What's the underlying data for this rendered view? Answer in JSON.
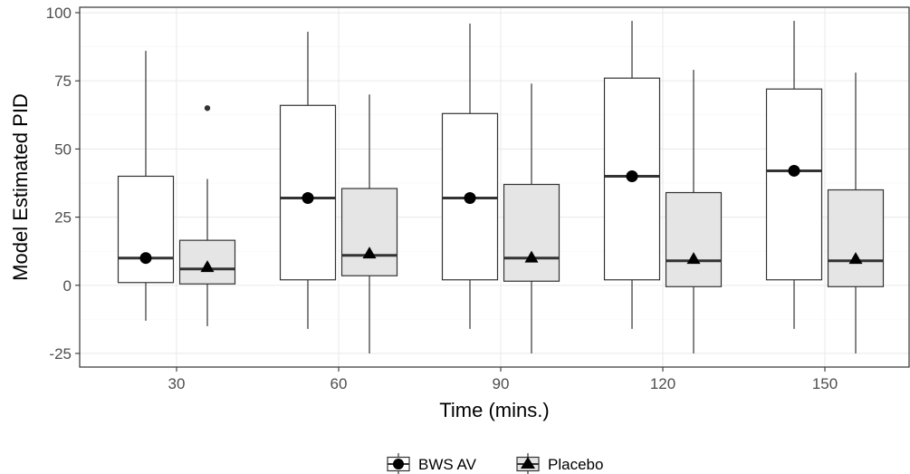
{
  "chart_data": {
    "type": "boxplot",
    "xlabel": "Time (mins.)",
    "ylabel": "Model Estimated PID",
    "categories": [
      "30",
      "60",
      "90",
      "120",
      "150"
    ],
    "ylim": [
      -30,
      102
    ],
    "yticks": [
      -25,
      0,
      25,
      50,
      75,
      100
    ],
    "ytick_labels": [
      "-25",
      "0",
      "25",
      "50",
      "75",
      "100"
    ],
    "grid": true,
    "legend_position": "bottom",
    "series": [
      {
        "name": "BWS AV",
        "marker": "circle",
        "fill": "#ffffff",
        "boxes": [
          {
            "category": "30",
            "whisker_low": -13,
            "q1": 1,
            "median": 10,
            "q3": 40,
            "whisker_high": 86,
            "mean": 10,
            "outliers": []
          },
          {
            "category": "60",
            "whisker_low": -16,
            "q1": 2,
            "median": 32,
            "q3": 66,
            "whisker_high": 93,
            "mean": 32,
            "outliers": []
          },
          {
            "category": "90",
            "whisker_low": -16,
            "q1": 2,
            "median": 32,
            "q3": 63,
            "whisker_high": 96,
            "mean": 32,
            "outliers": []
          },
          {
            "category": "120",
            "whisker_low": -16,
            "q1": 2,
            "median": 40,
            "q3": 76,
            "whisker_high": 97,
            "mean": 40,
            "outliers": []
          },
          {
            "category": "150",
            "whisker_low": -16,
            "q1": 2,
            "median": 42,
            "q3": 72,
            "whisker_high": 97,
            "mean": 42,
            "outliers": []
          }
        ]
      },
      {
        "name": "Placebo",
        "marker": "triangle",
        "fill": "#e5e5e5",
        "boxes": [
          {
            "category": "30",
            "whisker_low": -15,
            "q1": 0.5,
            "median": 6,
            "q3": 16.5,
            "whisker_high": 39,
            "mean": 6.5,
            "outliers": [
              65
            ]
          },
          {
            "category": "60",
            "whisker_low": -25,
            "q1": 3.5,
            "median": 11,
            "q3": 35.5,
            "whisker_high": 70,
            "mean": 11.5,
            "outliers": []
          },
          {
            "category": "90",
            "whisker_low": -25,
            "q1": 1.5,
            "median": 10,
            "q3": 37,
            "whisker_high": 74,
            "mean": 10,
            "outliers": []
          },
          {
            "category": "120",
            "whisker_low": -25,
            "q1": -0.5,
            "median": 9,
            "q3": 34,
            "whisker_high": 79,
            "mean": 9.5,
            "outliers": []
          },
          {
            "category": "150",
            "whisker_low": -25,
            "q1": -0.5,
            "median": 9,
            "q3": 35,
            "whisker_high": 78,
            "mean": 9.5,
            "outliers": []
          }
        ]
      }
    ]
  }
}
